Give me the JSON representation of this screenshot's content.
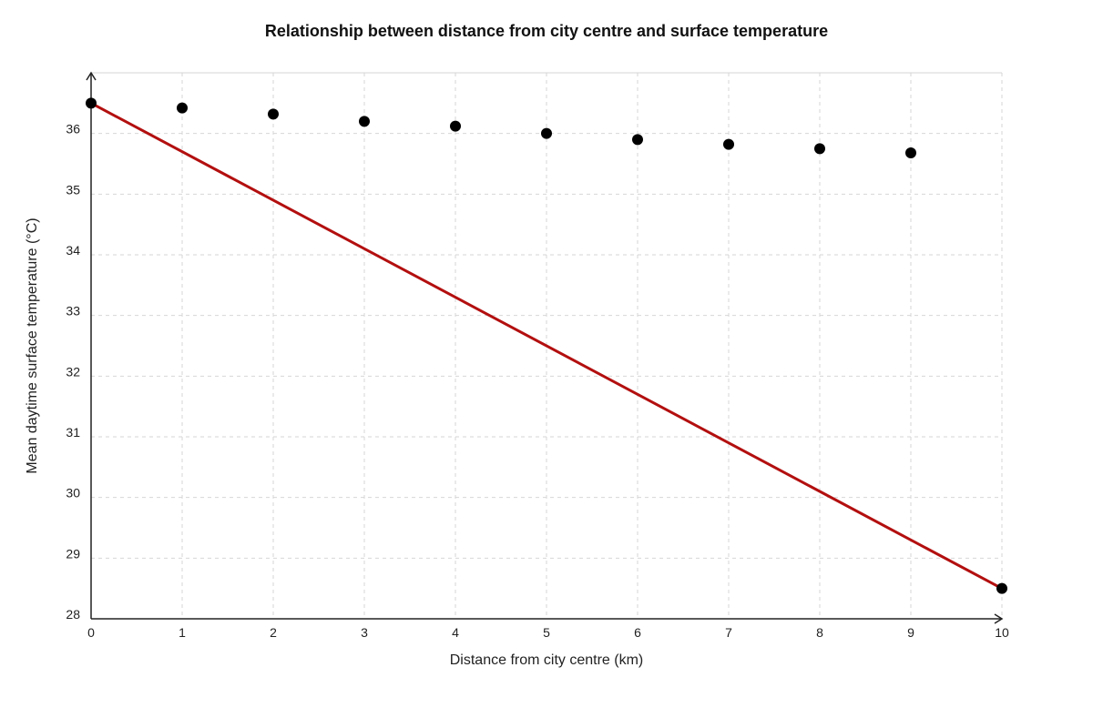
{
  "chart_data": {
    "type": "scatter",
    "title": "Relationship between distance from city centre and surface temperature",
    "xlabel": "Distance from city centre (km)",
    "ylabel": "Mean daytime surface temperature (°C)",
    "xlim": [
      0,
      10
    ],
    "ylim": [
      28,
      37
    ],
    "x_ticks": [
      "0",
      "1",
      "2",
      "3",
      "4",
      "5",
      "6",
      "7",
      "8",
      "9",
      "10"
    ],
    "y_ticks": [
      "28",
      "29",
      "30",
      "31",
      "32",
      "33",
      "34",
      "35",
      "36"
    ],
    "grid": true,
    "series": [
      {
        "type": "scatter",
        "color": "#000000",
        "points": [
          {
            "x": 0,
            "y": 36.5
          },
          {
            "x": 1,
            "y": 36.42
          },
          {
            "x": 2,
            "y": 36.32
          },
          {
            "x": 3,
            "y": 36.2
          },
          {
            "x": 4,
            "y": 36.12
          },
          {
            "x": 5,
            "y": 36.0
          },
          {
            "x": 6,
            "y": 35.9
          },
          {
            "x": 7,
            "y": 35.82
          },
          {
            "x": 8,
            "y": 35.75
          },
          {
            "x": 9,
            "y": 35.68
          },
          {
            "x": 10,
            "y": 28.5
          }
        ]
      },
      {
        "type": "line",
        "color": "#b30f0f",
        "points": [
          {
            "x": 0,
            "y": 36.5
          },
          {
            "x": 10,
            "y": 28.5
          }
        ]
      }
    ]
  }
}
